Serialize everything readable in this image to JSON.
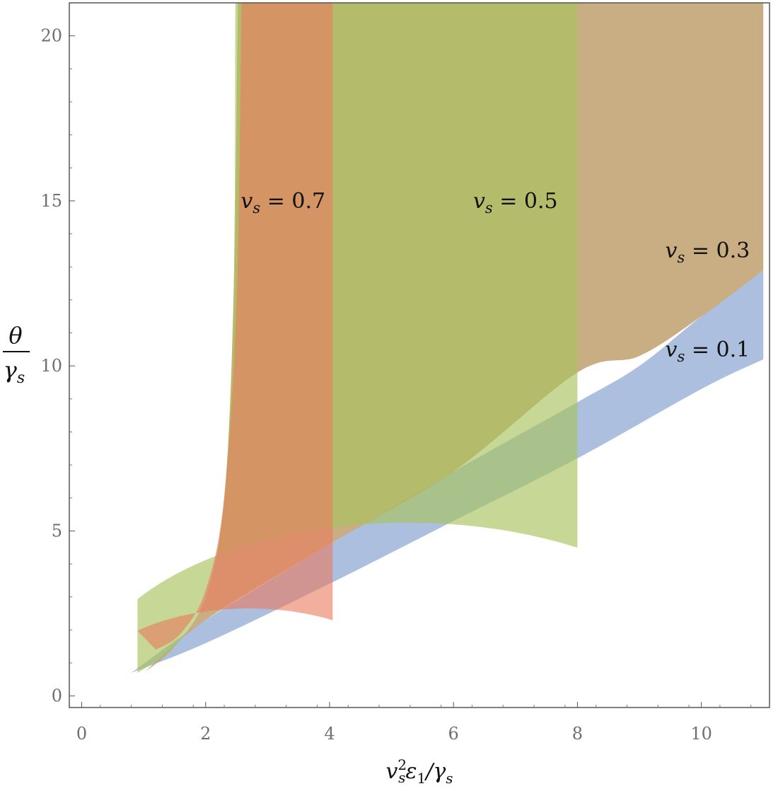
{
  "chart_data": {
    "type": "area",
    "xlabel": "v_s^2 ε_1/γ_s",
    "ylabel_numerator": "θ",
    "ylabel_denominator": "γ_s",
    "xlim": [
      -0.2,
      11.1
    ],
    "ylim": [
      -0.35,
      21.0
    ],
    "xticks": [
      0,
      2,
      4,
      6,
      8,
      10
    ],
    "yticks": [
      0,
      5,
      10,
      15,
      20
    ],
    "grid": false,
    "frame": true,
    "series": [
      {
        "name": "v_s = 0.1",
        "label": "v_s = 0.1",
        "color": "#a9bcdc",
        "opacity": 0.95,
        "upper": [
          [
            0.8,
            0.7
          ],
          [
            2,
            2.3
          ],
          [
            4,
            4.6
          ],
          [
            6,
            6.8
          ],
          [
            8,
            8.9
          ],
          [
            9,
            10.0
          ],
          [
            10,
            11.5
          ],
          [
            11,
            12.9
          ]
        ],
        "lower": [
          [
            0.8,
            0.7
          ],
          [
            2,
            1.6
          ],
          [
            4,
            3.4
          ],
          [
            6,
            5.3
          ],
          [
            8,
            7.2
          ],
          [
            10,
            9.3
          ],
          [
            11,
            10.2
          ]
        ]
      },
      {
        "name": "v_s = 0.3",
        "label": "v_s = 0.3",
        "color": "#c4a575",
        "opacity": 0.9,
        "upper_y": 21.0,
        "left_boundary": [
          [
            1.0,
            0.7
          ],
          [
            1.5,
            1.5
          ],
          [
            2.0,
            3.0
          ],
          [
            2.3,
            6.0
          ],
          [
            2.45,
            12.0
          ],
          [
            2.52,
            21.0
          ]
        ],
        "lower": [
          [
            1.0,
            0.7
          ],
          [
            2,
            2.3
          ],
          [
            4,
            4.6
          ],
          [
            6,
            6.8
          ],
          [
            8,
            9.8
          ],
          [
            9,
            10.3
          ],
          [
            10,
            11.5
          ],
          [
            11,
            12.9
          ]
        ],
        "xmax": 11
      },
      {
        "name": "v_s = 0.5",
        "label": "v_s = 0.5",
        "color": "#a7c25e",
        "opacity": 0.65,
        "upper_y": 21.0,
        "left_boundary": [
          [
            0.9,
            0.7
          ],
          [
            1.5,
            1.5
          ],
          [
            2.0,
            3.0
          ],
          [
            2.3,
            6.0
          ],
          [
            2.45,
            12.0
          ],
          [
            2.48,
            21.0
          ]
        ],
        "lower_arc": {
          "center_x": 5.27,
          "center_y": 0,
          "radius": 5.27,
          "x_start": 0.9,
          "x_end": 8.0,
          "end_y": 0.4
        },
        "xmax": 8
      },
      {
        "name": "v_s = 0.7",
        "label": "v_s = 0.7",
        "color": "#ea7a5e",
        "opacity": 0.6,
        "upper_y": 21.0,
        "left_boundary": [
          [
            1.2,
            1.4
          ],
          [
            1.6,
            1.9
          ],
          [
            2.0,
            3.2
          ],
          [
            2.3,
            6.0
          ],
          [
            2.5,
            12.0
          ],
          [
            2.58,
            21.0
          ]
        ],
        "lower_arc": {
          "center_x": 2.7,
          "center_y": 0,
          "radius": 2.7,
          "x_start": 0.9,
          "x_end": 4.05,
          "end_y": 0.3
        },
        "xmax": 4.05
      }
    ],
    "annotations": [
      {
        "text": "v_s = 0.7",
        "x": 3.25,
        "y": 15.0
      },
      {
        "text": "v_s = 0.5",
        "x": 7.0,
        "y": 15.0
      },
      {
        "text": "v_s = 0.3",
        "x": 10.1,
        "y": 13.5
      },
      {
        "text": "v_s = 0.1",
        "x": 10.1,
        "y": 10.5
      }
    ]
  }
}
